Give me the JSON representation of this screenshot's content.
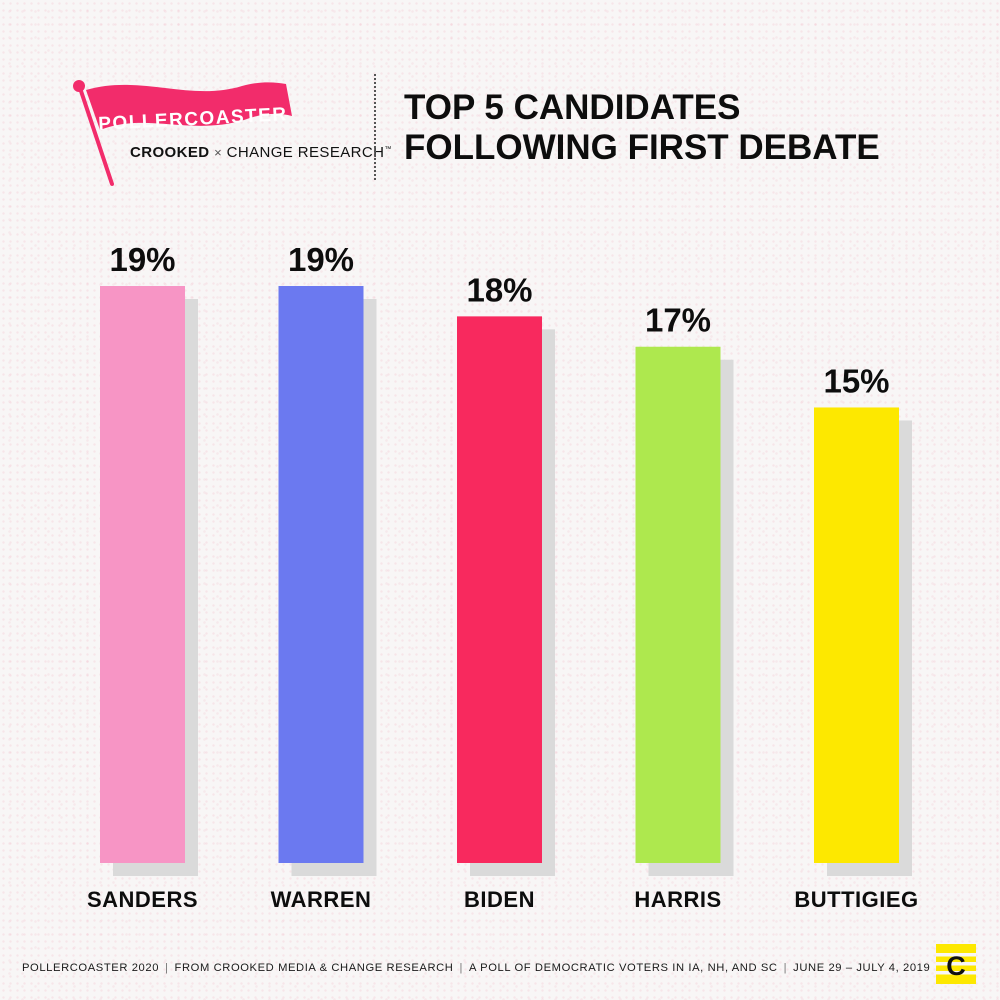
{
  "logo": {
    "wordmark": "POLLERCOASTER",
    "partner_left": "CROOKED",
    "times": "×",
    "partner_right": "CHANGE RESEARCH",
    "trademark": "™"
  },
  "title": {
    "line1": "TOP 5 CANDIDATES",
    "line2": "FOLLOWING FIRST DEBATE"
  },
  "chart_data": {
    "type": "bar",
    "categories": [
      "SANDERS",
      "WARREN",
      "BIDEN",
      "HARRIS",
      "BUTTIGIEG"
    ],
    "values": [
      19,
      19,
      18,
      17,
      15
    ],
    "value_labels": [
      "19%",
      "19%",
      "18%",
      "17%",
      "15%"
    ],
    "colors": [
      "#f795c5",
      "#6b79f0",
      "#f8295e",
      "#aee84e",
      "#fde800"
    ],
    "shadow_color": "#dadada",
    "ylim": [
      0,
      19
    ]
  },
  "footer": {
    "items": [
      "POLLERCOASTER 2020",
      "FROM CROOKED MEDIA & CHANGE RESEARCH",
      "A POLL OF DEMOCRATIC VOTERS IN IA, NH, AND SC",
      "JUNE 29 – JULY 4, 2019"
    ],
    "separator": "|"
  },
  "brand_mark": {
    "letter": "C",
    "color": "#fde800"
  }
}
